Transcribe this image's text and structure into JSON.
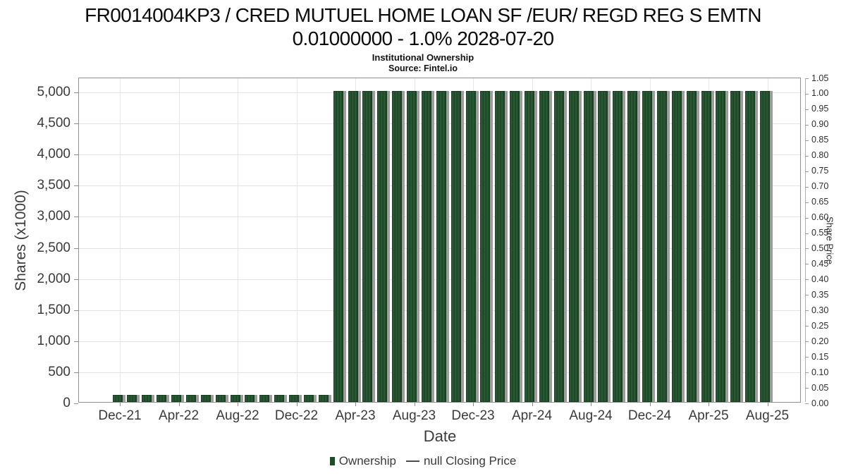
{
  "header": {
    "title_line1": "FR0014004KP3 / CRED MUTUEL HOME LOAN SF /EUR/ REGD REG S EMTN",
    "title_line2": "0.01000000 - 1.0% 2028-07-20",
    "subtitle": "Institutional Ownership",
    "source": "Source: Fintel.io"
  },
  "colors": {
    "bar_green": "#25522f",
    "bar_green_dark": "#1b4123",
    "bar_green_light": "#2d5c38",
    "bar_outline": "#1a3d22",
    "bar_gray": "#9d9d9d",
    "grid": "#e3e3e3",
    "plot_border": "#919191",
    "tick": "#8c8c8c",
    "text": "#3a3a3a",
    "legend_swatch": "#1f4b29",
    "legend_dash": "#4d4d4d"
  },
  "chart_data": {
    "type": "bar",
    "title": "FR0014004KP3 / CRED MUTUEL HOME LOAN SF /EUR/ REGD REG S EMTN 0.01000000 - 1.0% 2028-07-20",
    "subtitle": "Institutional Ownership",
    "source": "Source: Fintel.io",
    "xlabel": "Date",
    "ylabel_left": "Shares (x1000)",
    "ylabel_right": "Share Price",
    "grid": true,
    "legend_position": "bottom-center",
    "ylim_left": [
      0,
      5250
    ],
    "ylim_right": [
      0,
      1.05
    ],
    "legend": [
      {
        "label": "Ownership",
        "marker": "bar-swatch",
        "color": "#1f4b29"
      },
      {
        "label": "null Closing Price",
        "marker": "line-dash",
        "color": "#4d4d4d"
      }
    ],
    "left_axis_ticks": [
      {
        "v": 0,
        "t": "0"
      },
      {
        "v": 500,
        "t": "500"
      },
      {
        "v": 1000,
        "t": "1,000"
      },
      {
        "v": 1500,
        "t": "1,500"
      },
      {
        "v": 2000,
        "t": "2,000"
      },
      {
        "v": 2500,
        "t": "2,500"
      },
      {
        "v": 3000,
        "t": "3,000"
      },
      {
        "v": 3500,
        "t": "3,500"
      },
      {
        "v": 4000,
        "t": "4,000"
      },
      {
        "v": 4500,
        "t": "4,500"
      },
      {
        "v": 5000,
        "t": "5,000"
      }
    ],
    "right_axis_ticks": [
      {
        "v": 0.0,
        "t": "0.00"
      },
      {
        "v": 0.05,
        "t": "0.05"
      },
      {
        "v": 0.1,
        "t": "0.10"
      },
      {
        "v": 0.15,
        "t": "0.15"
      },
      {
        "v": 0.2,
        "t": "0.20"
      },
      {
        "v": 0.25,
        "t": "0.25"
      },
      {
        "v": 0.3,
        "t": "0.30"
      },
      {
        "v": 0.35,
        "t": "0.35"
      },
      {
        "v": 0.4,
        "t": "0.40"
      },
      {
        "v": 0.45,
        "t": "0.45"
      },
      {
        "v": 0.5,
        "t": "0.50"
      },
      {
        "v": 0.55,
        "t": "0.55"
      },
      {
        "v": 0.6,
        "t": "0.60"
      },
      {
        "v": 0.65,
        "t": "0.65"
      },
      {
        "v": 0.7,
        "t": "0.70"
      },
      {
        "v": 0.75,
        "t": "0.75"
      },
      {
        "v": 0.8,
        "t": "0.80"
      },
      {
        "v": 0.85,
        "t": "0.85"
      },
      {
        "v": 0.9,
        "t": "0.90"
      },
      {
        "v": 0.95,
        "t": "0.95"
      },
      {
        "v": 1.0,
        "t": "1.00"
      },
      {
        "v": 1.05,
        "t": "1.05"
      }
    ],
    "x_axis_ticks": [
      {
        "i": 0,
        "t": "Dec-21"
      },
      {
        "i": 4,
        "t": "Apr-22"
      },
      {
        "i": 8,
        "t": "Aug-22"
      },
      {
        "i": 12,
        "t": "Dec-22"
      },
      {
        "i": 16,
        "t": "Apr-23"
      },
      {
        "i": 20,
        "t": "Aug-23"
      },
      {
        "i": 24,
        "t": "Dec-23"
      },
      {
        "i": 28,
        "t": "Apr-24"
      },
      {
        "i": 32,
        "t": "Aug-24"
      },
      {
        "i": 36,
        "t": "Dec-24"
      },
      {
        "i": 40,
        "t": "Apr-25"
      },
      {
        "i": 44,
        "t": "Aug-25"
      }
    ],
    "categories": [
      "Dec-21",
      "Jan-22",
      "Feb-22",
      "Mar-22",
      "Apr-22",
      "May-22",
      "Jun-22",
      "Jul-22",
      "Aug-22",
      "Sep-22",
      "Oct-22",
      "Nov-22",
      "Dec-22",
      "Jan-23",
      "Feb-23",
      "Mar-23",
      "Apr-23",
      "May-23",
      "Jun-23",
      "Jul-23",
      "Aug-23",
      "Sep-23",
      "Oct-23",
      "Nov-23",
      "Dec-23",
      "Jan-24",
      "Feb-24",
      "Mar-24",
      "Apr-24",
      "May-24",
      "Jun-24",
      "Jul-24",
      "Aug-24",
      "Sep-24",
      "Oct-24",
      "Nov-24",
      "Dec-24",
      "Jan-25",
      "Feb-25",
      "Mar-25",
      "Apr-25",
      "May-25",
      "Jun-25",
      "Jul-25",
      "Aug-25"
    ],
    "series": [
      {
        "name": "Ownership",
        "values": [
          110,
          110,
          110,
          110,
          110,
          110,
          110,
          110,
          110,
          110,
          110,
          110,
          110,
          110,
          110,
          5000,
          5000,
          5000,
          5000,
          5000,
          5000,
          5000,
          5000,
          5000,
          5000,
          5000,
          5000,
          5000,
          5000,
          5000,
          5000,
          5000,
          5000,
          5000,
          5000,
          5000,
          5000,
          5000,
          5000,
          5000,
          5000,
          5000,
          5000,
          5000,
          5000
        ]
      }
    ]
  }
}
